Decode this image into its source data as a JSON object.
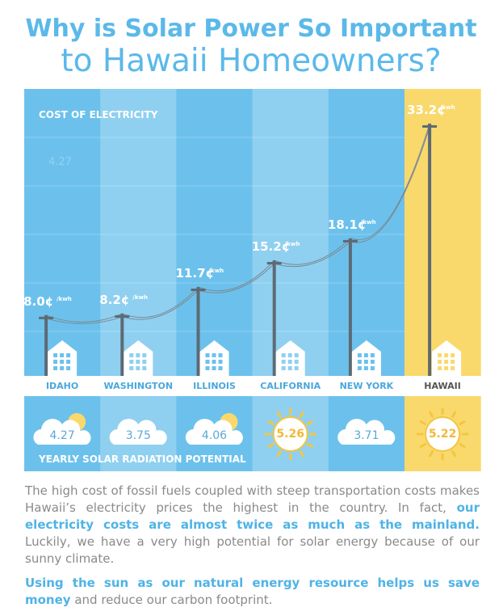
{
  "header": {
    "title_line1": "Why is Solar Power So Important",
    "title_line2": "to Hawaii Homeowners?"
  },
  "chart_data": {
    "type": "bar",
    "title": "COST OF ELECTRICITY",
    "watermark": "4.27",
    "categories": [
      "IDAHO",
      "WASHINGTON",
      "ILLINOIS",
      "CALIFORNIA",
      "NEW YORK",
      "HAWAII"
    ],
    "values": [
      8.0,
      8.2,
      11.7,
      15.2,
      18.1,
      33.2
    ],
    "value_labels": [
      "8.0¢",
      "8.2¢",
      "11.7¢",
      "15.2¢",
      "18.1¢",
      "33.2¢"
    ],
    "value_unit": "/kwh",
    "colors": [
      "#6cc1ec",
      "#8fd0f1",
      "#6cc1ec",
      "#8fd0f1",
      "#6cc1ec",
      "#f9d96c"
    ],
    "radiation": {
      "title": "YEARLY SOLAR RADIATION POTENTIAL",
      "values": [
        4.27,
        3.75,
        4.06,
        5.26,
        3.71,
        5.22
      ],
      "icons": [
        "partly-cloudy",
        "cloud",
        "partly-cloudy",
        "sun",
        "cloud",
        "sun"
      ]
    }
  },
  "body": {
    "paragraphs": [
      [
        {
          "text": "The high cost of fossil fuels coupled with steep transportation costs makes Hawaii’s electricity prices the highest in the country. In fact, ",
          "bold": false
        },
        {
          "text": "our electricity costs are almost twice as much as the mainland.",
          "bold": true
        },
        {
          "text": " Luckily, we have a very high  potential for solar energy because of our sunny climate.",
          "bold": false
        }
      ],
      [
        {
          "text": "Using the sun as our natural energy resource helps us save money",
          "bold": true
        },
        {
          "text": " and reduce our carbon footprint.",
          "bold": false
        }
      ]
    ]
  }
}
